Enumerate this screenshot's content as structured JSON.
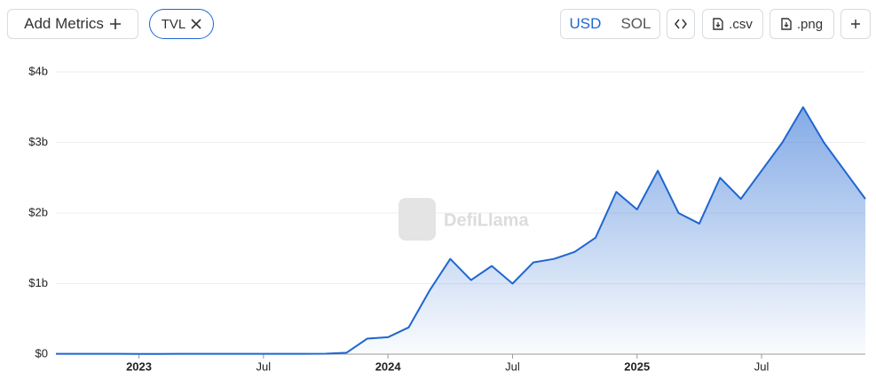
{
  "toolbar": {
    "add_metrics": "Add Metrics",
    "metric": "TVL",
    "currencies": [
      "USD",
      "SOL"
    ],
    "downloads": [
      ".csv",
      ".png"
    ]
  },
  "chart_data": {
    "type": "area",
    "watermark": "DefiLlama",
    "color": "#1f66d1",
    "x": [
      "2022-09",
      "2022-10",
      "2022-11",
      "2022-12",
      "2023-01",
      "2023-02",
      "2023-03",
      "2023-04",
      "2023-05",
      "2023-06",
      "2023-07",
      "2023-08",
      "2023-09",
      "2023-10",
      "2023-11",
      "2023-12",
      "2024-01",
      "2024-02",
      "2024-03",
      "2024-04",
      "2024-05",
      "2024-06",
      "2024-07",
      "2024-08",
      "2024-09",
      "2024-10",
      "2024-11",
      "2024-12",
      "2025-01",
      "2025-02",
      "2025-03",
      "2025-04",
      "2025-05",
      "2025-06",
      "2025-07",
      "2025-08",
      "2025-09",
      "2025-10",
      "2025-11",
      "2025-12"
    ],
    "values": [
      5000000,
      5000000,
      4000000,
      4000000,
      3000000,
      3000000,
      4000000,
      4000000,
      4000000,
      4000000,
      5000000,
      4000000,
      4000000,
      6000000,
      20000000,
      220000000,
      240000000,
      380000000,
      900000000,
      1350000000,
      1050000000,
      1250000000,
      1000000000,
      1300000000,
      1350000000,
      1450000000,
      1650000000,
      2300000000,
      2050000000,
      2600000000,
      2000000000,
      1850000000,
      2500000000,
      2200000000,
      2600000000,
      3000000000,
      3500000000,
      3000000000,
      2600000000,
      2200000000
    ],
    "xlim": [
      "2022-09",
      "2025-12"
    ],
    "xticks": [
      {
        "value": "2023-01",
        "label": "2023"
      },
      {
        "value": "2023-07",
        "label": "Jul"
      },
      {
        "value": "2024-01",
        "label": "2024"
      },
      {
        "value": "2024-07",
        "label": "Jul"
      },
      {
        "value": "2025-01",
        "label": "2025"
      },
      {
        "value": "2025-07",
        "label": "Jul"
      }
    ],
    "ylim": [
      0,
      4000000000
    ],
    "yticks": [
      {
        "value": 0,
        "label": "$0"
      },
      {
        "value": 1000000000,
        "label": "$1b"
      },
      {
        "value": 2000000000,
        "label": "$2b"
      },
      {
        "value": 3000000000,
        "label": "$3b"
      },
      {
        "value": 4000000000,
        "label": "$4b"
      }
    ],
    "grid": true
  }
}
